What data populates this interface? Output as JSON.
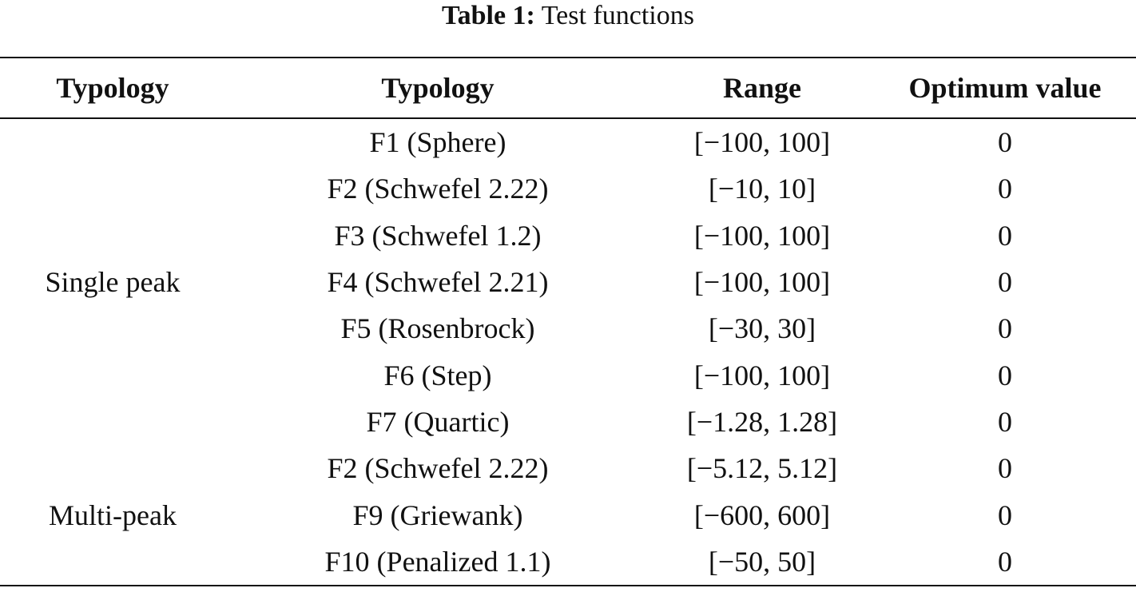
{
  "caption": {
    "label": "Table 1:",
    "text": " Test functions"
  },
  "headers": [
    "Typology",
    "Typology",
    "Range",
    "Optimum value"
  ],
  "groups": [
    {
      "typology": "Single peak",
      "rows": [
        {
          "function": "F1 (Sphere)",
          "range": "[−100, 100]",
          "optimum": "0"
        },
        {
          "function": "F2 (Schwefel 2.22)",
          "range": "[−10, 10]",
          "optimum": "0"
        },
        {
          "function": "F3 (Schwefel 1.2)",
          "range": "[−100, 100]",
          "optimum": "0"
        },
        {
          "function": "F4 (Schwefel 2.21)",
          "range": "[−100, 100]",
          "optimum": "0"
        },
        {
          "function": "F5 (Rosenbrock)",
          "range": "[−30, 30]",
          "optimum": "0"
        },
        {
          "function": "F6 (Step)",
          "range": "[−100, 100]",
          "optimum": "0"
        },
        {
          "function": "F7 (Quartic)",
          "range": "[−1.28, 1.28]",
          "optimum": "0"
        }
      ]
    },
    {
      "typology": "Multi-peak",
      "rows": [
        {
          "function": "F2 (Schwefel 2.22)",
          "range": "[−5.12, 5.12]",
          "optimum": "0"
        },
        {
          "function": "F9 (Griewank)",
          "range": "[−600, 600]",
          "optimum": "0"
        },
        {
          "function": "F10 (Penalized 1.1)",
          "range": "[−50, 50]",
          "optimum": "0"
        }
      ]
    }
  ]
}
